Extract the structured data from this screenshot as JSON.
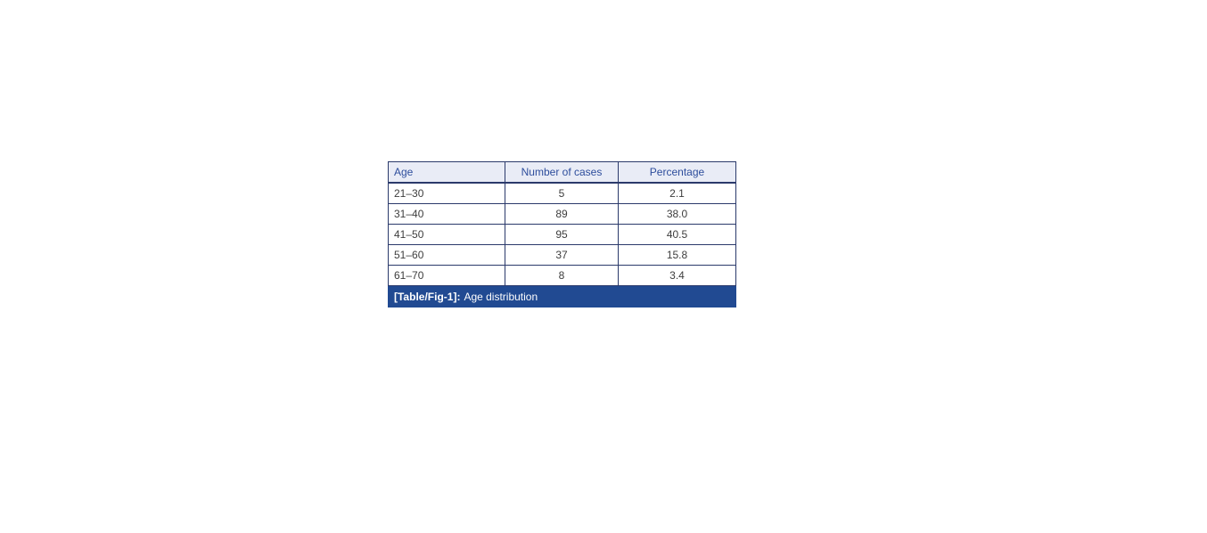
{
  "figure": {
    "table": {
      "columns": [
        "Age",
        "Number of cases",
        "Percentage"
      ],
      "rows": [
        [
          "21–30",
          "5",
          "2.1"
        ],
        [
          "31–40",
          "89",
          "38.0"
        ],
        [
          "41–50",
          "95",
          "40.5"
        ],
        [
          "51–60",
          "37",
          "15.8"
        ],
        [
          "61–70",
          "8",
          "3.4"
        ]
      ],
      "caption": {
        "label": "[Table/Fig-1]:",
        "text": "Age distribution"
      }
    },
    "colors": {
      "header_bg": "#e9ecf6",
      "header_text": "#2d4d9c",
      "border": "#2b3a6b",
      "caption_bg": "#214a92",
      "caption_text": "#ffffff",
      "body_text": "#3d3d3d",
      "page_bg": "#ffffff"
    }
  },
  "chart_data": {
    "type": "table",
    "title": "[Table/Fig-1]: Age distribution",
    "categories": [
      "21–30",
      "31–40",
      "41–50",
      "51–60",
      "61–70"
    ],
    "series": [
      {
        "name": "Number of cases",
        "values": [
          5,
          89,
          95,
          37,
          8
        ]
      },
      {
        "name": "Percentage",
        "values": [
          2.1,
          38.0,
          40.5,
          15.8,
          3.4
        ]
      }
    ]
  }
}
